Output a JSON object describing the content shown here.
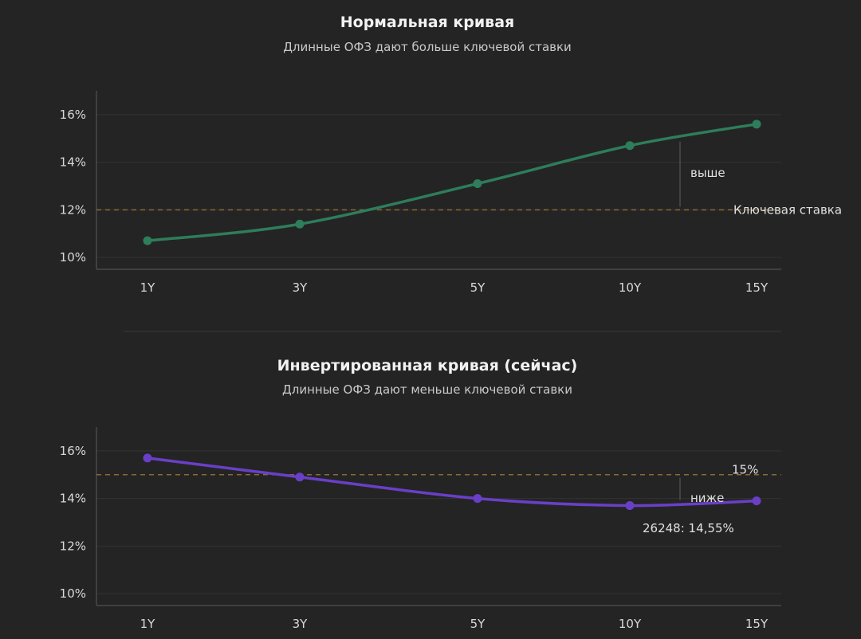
{
  "chart_data": [
    {
      "type": "line",
      "title": "Нормальная кривая",
      "subtitle": "Длинные ОФЗ дают больше ключевой ставки",
      "categories": [
        "1Y",
        "3Y",
        "5Y",
        "10Y",
        "15Y"
      ],
      "y_ticks": [
        "10%",
        "12%",
        "14%",
        "16%"
      ],
      "ylim": [
        9.5,
        17
      ],
      "grid": true,
      "color": "#2e7d5b",
      "series": [
        {
          "values": [
            10.7,
            11.4,
            13.1,
            14.7,
            15.6
          ]
        }
      ],
      "reference_line": {
        "value": 12,
        "label": "Ключевая ставка"
      },
      "annotations": [
        {
          "text": "выше"
        }
      ]
    },
    {
      "type": "line",
      "title": "Инвертированная кривая (сейчас)",
      "subtitle": "Длинные ОФЗ дают меньше ключевой ставки",
      "categories": [
        "1Y",
        "3Y",
        "5Y",
        "10Y",
        "15Y"
      ],
      "y_ticks": [
        "16%",
        "14%",
        "12%",
        "10%"
      ],
      "ylim": [
        9.5,
        17
      ],
      "grid": true,
      "color": "#6a3fc7",
      "series": [
        {
          "values": [
            15.7,
            14.9,
            14.0,
            13.7,
            13.9
          ]
        }
      ],
      "reference_line": {
        "value": 15,
        "label": "15%"
      },
      "annotations": [
        {
          "text": "ниже"
        },
        {
          "text": "26248: 14,55%"
        }
      ]
    }
  ]
}
